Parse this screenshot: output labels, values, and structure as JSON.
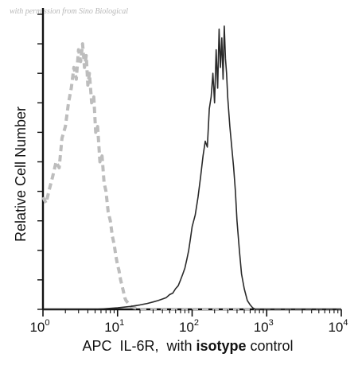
{
  "watermark": "with permission from Sino Biological",
  "chart_data": {
    "type": "line",
    "subtype": "flow-cytometry-histogram",
    "x_scale": "log",
    "xlim": [
      1,
      10000
    ],
    "x_ticks": [
      {
        "base": "10",
        "exp": "0"
      },
      {
        "base": "10",
        "exp": "1"
      },
      {
        "base": "10",
        "exp": "2"
      },
      {
        "base": "10",
        "exp": "3"
      },
      {
        "base": "10",
        "exp": "4"
      }
    ],
    "x_tick_values": [
      1,
      10,
      100,
      1000,
      10000
    ],
    "xlabel_parts": [
      {
        "text": "APC  IL-6R,  with ",
        "bold": false
      },
      {
        "text": "isotype",
        "bold": true
      },
      {
        "text": " control",
        "bold": false
      }
    ],
    "ylabel": "Relative Cell Number",
    "ylim": [
      0,
      100
    ],
    "y_tick_marks": true,
    "grid": false,
    "legend": "none",
    "series": [
      {
        "style": "dashed",
        "color": "#bdbdbd",
        "x": [
          1.0,
          1.1,
          1.2,
          1.35,
          1.5,
          1.65,
          1.8,
          2.0,
          2.2,
          2.4,
          2.6,
          2.8,
          3.0,
          3.2,
          3.4,
          3.6,
          3.8,
          4.0,
          4.2,
          4.5,
          4.8,
          5.1,
          5.4,
          5.8,
          6.2,
          6.6,
          7.0,
          7.5,
          8.0,
          8.5,
          9.0,
          9.5,
          10.0,
          10.5,
          11.0,
          11.5,
          12.0,
          12.5,
          13.0,
          14.0,
          15.0,
          17.0,
          20.0,
          30.0,
          50.0,
          100,
          200,
          500,
          1000,
          2000,
          5000,
          10000
        ],
        "y": [
          38,
          36,
          40,
          45,
          50,
          48,
          58,
          62,
          70,
          75,
          82,
          78,
          88,
          84,
          90,
          82,
          86,
          76,
          80,
          70,
          72,
          60,
          62,
          50,
          52,
          43,
          40,
          33,
          30,
          25,
          22,
          18,
          15,
          13,
          10,
          8,
          6,
          4,
          3,
          2,
          1,
          0.5,
          0,
          0,
          0,
          0,
          0,
          0,
          0,
          0,
          0,
          0
        ]
      },
      {
        "style": "solid",
        "color": "#2a2a2a",
        "x": [
          1.0,
          5.0,
          10.0,
          15.0,
          20.0,
          25.0,
          30.0,
          35.0,
          40.0,
          45.0,
          50.0,
          55.0,
          60.0,
          65.0,
          70.0,
          75.0,
          80.0,
          85.0,
          90.0,
          95.0,
          100,
          110,
          120,
          130,
          140,
          150,
          160,
          170,
          180,
          190,
          200,
          210,
          220,
          230,
          240,
          250,
          260,
          270,
          280,
          290,
          300,
          320,
          340,
          360,
          380,
          400,
          430,
          460,
          500,
          550,
          600,
          650,
          700,
          800,
          900,
          1000,
          1200,
          1500,
          2000,
          3000,
          5000,
          10000
        ],
        "y": [
          0,
          0,
          0.5,
          1,
          1.5,
          2,
          2.5,
          3,
          3.5,
          4,
          5,
          5.5,
          7,
          8,
          10,
          12,
          14,
          17,
          20,
          24,
          28,
          32,
          38,
          45,
          52,
          57,
          55,
          68,
          72,
          80,
          70,
          88,
          75,
          95,
          82,
          92,
          78,
          96,
          85,
          80,
          72,
          62,
          55,
          48,
          40,
          30,
          20,
          12,
          7,
          3,
          1.5,
          0.5,
          0,
          0,
          0,
          0,
          0,
          0,
          0,
          0,
          0,
          0
        ]
      }
    ]
  }
}
